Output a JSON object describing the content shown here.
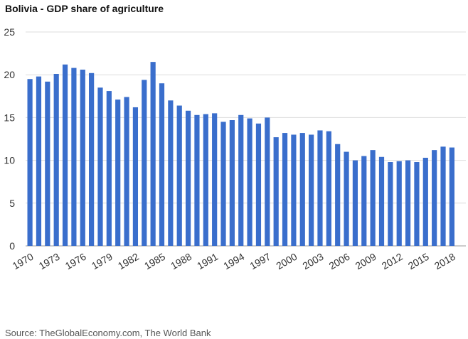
{
  "chart_data": {
    "type": "bar",
    "title": "Bolivia - GDP share of agriculture",
    "xlabel": "",
    "ylabel": "",
    "ylim": [
      0,
      25
    ],
    "yticks": [
      0,
      5,
      10,
      15,
      20,
      25
    ],
    "grid": true,
    "bar_color": "#3a6ecc",
    "categories": [
      1970,
      1971,
      1972,
      1973,
      1974,
      1975,
      1976,
      1977,
      1978,
      1979,
      1980,
      1981,
      1982,
      1983,
      1984,
      1985,
      1986,
      1987,
      1988,
      1989,
      1990,
      1991,
      1992,
      1993,
      1994,
      1995,
      1996,
      1997,
      1998,
      1999,
      2000,
      2001,
      2002,
      2003,
      2004,
      2005,
      2006,
      2007,
      2008,
      2009,
      2010,
      2011,
      2012,
      2013,
      2014,
      2015,
      2016,
      2017,
      2018
    ],
    "values": [
      19.5,
      19.8,
      19.2,
      20.1,
      21.2,
      20.8,
      20.6,
      20.2,
      18.5,
      18.1,
      17.1,
      17.4,
      16.2,
      19.4,
      21.5,
      19.0,
      17.0,
      16.4,
      15.8,
      15.3,
      15.4,
      15.5,
      14.5,
      14.7,
      15.3,
      14.9,
      14.3,
      15.0,
      12.7,
      13.2,
      13.0,
      13.2,
      13.0,
      13.5,
      13.4,
      11.9,
      11.0,
      10.0,
      10.5,
      11.2,
      10.4,
      9.8,
      9.9,
      10.0,
      9.8,
      10.3,
      11.2,
      11.6,
      11.5
    ],
    "tick_labels": [
      "1970",
      "1973",
      "1976",
      "1979",
      "1982",
      "1985",
      "1988",
      "1991",
      "1994",
      "1997",
      "2000",
      "2003",
      "2006",
      "2009",
      "2012",
      "2015",
      "2018"
    ]
  },
  "source": "Source: TheGlobalEconomy.com, The World Bank"
}
